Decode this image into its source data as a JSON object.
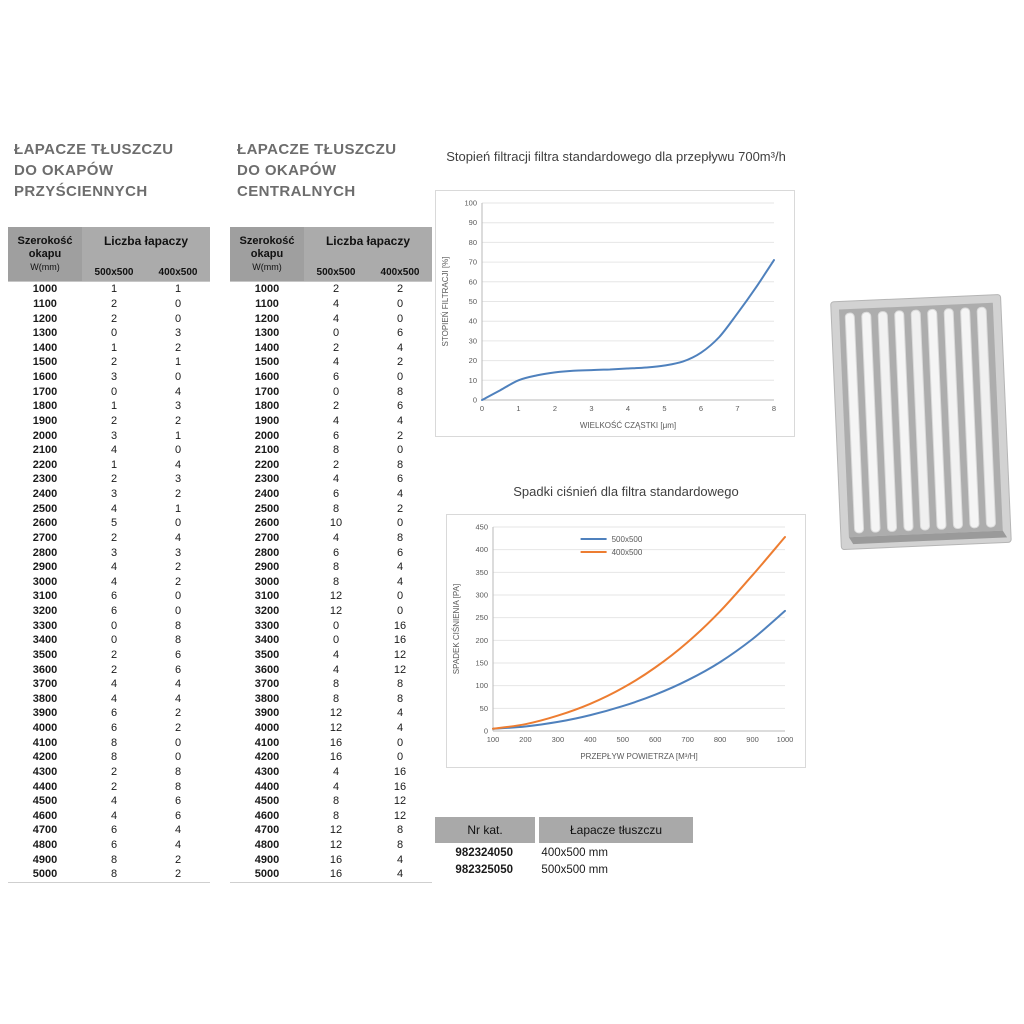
{
  "colors": {
    "accent_blue": "#4f81bd",
    "accent_orange": "#ed7d31",
    "header_gray": "#a9a9a9"
  },
  "left_tables": [
    {
      "title_lines": [
        "ŁAPACZE TŁUSZCZU",
        "DO OKAPÓW",
        "PRZYŚCIENNYCH"
      ],
      "header": {
        "col1": [
          "Szerokość",
          "okapu",
          "W(mm)"
        ],
        "group": "Liczba łapaczy",
        "subcols": [
          "500x500",
          "400x500"
        ]
      },
      "rows": [
        [
          1000,
          1,
          1
        ],
        [
          1100,
          2,
          0
        ],
        [
          1200,
          2,
          0
        ],
        [
          1300,
          0,
          3
        ],
        [
          1400,
          1,
          2
        ],
        [
          1500,
          2,
          1
        ],
        [
          1600,
          3,
          0
        ],
        [
          1700,
          0,
          4
        ],
        [
          1800,
          1,
          3
        ],
        [
          1900,
          2,
          2
        ],
        [
          2000,
          3,
          1
        ],
        [
          2100,
          4,
          0
        ],
        [
          2200,
          1,
          4
        ],
        [
          2300,
          2,
          3
        ],
        [
          2400,
          3,
          2
        ],
        [
          2500,
          4,
          1
        ],
        [
          2600,
          5,
          0
        ],
        [
          2700,
          2,
          4
        ],
        [
          2800,
          3,
          3
        ],
        [
          2900,
          4,
          2
        ],
        [
          3000,
          4,
          2
        ],
        [
          3100,
          6,
          0
        ],
        [
          3200,
          6,
          0
        ],
        [
          3300,
          0,
          8
        ],
        [
          3400,
          0,
          8
        ],
        [
          3500,
          2,
          6
        ],
        [
          3600,
          2,
          6
        ],
        [
          3700,
          4,
          4
        ],
        [
          3800,
          4,
          4
        ],
        [
          3900,
          6,
          2
        ],
        [
          4000,
          6,
          2
        ],
        [
          4100,
          8,
          0
        ],
        [
          4200,
          8,
          0
        ],
        [
          4300,
          2,
          8
        ],
        [
          4400,
          2,
          8
        ],
        [
          4500,
          4,
          6
        ],
        [
          4600,
          4,
          6
        ],
        [
          4700,
          6,
          4
        ],
        [
          4800,
          6,
          4
        ],
        [
          4900,
          8,
          2
        ],
        [
          5000,
          8,
          2
        ]
      ]
    },
    {
      "title_lines": [
        "ŁAPACZE TŁUSZCZU",
        "DO OKAPÓW",
        "CENTRALNYCH"
      ],
      "header": {
        "col1": [
          "Szerokość",
          "okapu",
          "W(mm)"
        ],
        "group": "Liczba łapaczy",
        "subcols": [
          "500x500",
          "400x500"
        ]
      },
      "rows": [
        [
          1000,
          2,
          2
        ],
        [
          1100,
          4,
          0
        ],
        [
          1200,
          4,
          0
        ],
        [
          1300,
          0,
          6
        ],
        [
          1400,
          2,
          4
        ],
        [
          1500,
          4,
          2
        ],
        [
          1600,
          6,
          0
        ],
        [
          1700,
          0,
          8
        ],
        [
          1800,
          2,
          6
        ],
        [
          1900,
          4,
          4
        ],
        [
          2000,
          6,
          2
        ],
        [
          2100,
          8,
          0
        ],
        [
          2200,
          2,
          8
        ],
        [
          2300,
          4,
          6
        ],
        [
          2400,
          6,
          4
        ],
        [
          2500,
          8,
          2
        ],
        [
          2600,
          10,
          0
        ],
        [
          2700,
          4,
          8
        ],
        [
          2800,
          6,
          6
        ],
        [
          2900,
          8,
          4
        ],
        [
          3000,
          8,
          4
        ],
        [
          3100,
          12,
          0
        ],
        [
          3200,
          12,
          0
        ],
        [
          3300,
          0,
          16
        ],
        [
          3400,
          0,
          16
        ],
        [
          3500,
          4,
          12
        ],
        [
          3600,
          4,
          12
        ],
        [
          3700,
          8,
          8
        ],
        [
          3800,
          8,
          8
        ],
        [
          3900,
          12,
          4
        ],
        [
          4000,
          12,
          4
        ],
        [
          4100,
          16,
          0
        ],
        [
          4200,
          16,
          0
        ],
        [
          4300,
          4,
          16
        ],
        [
          4400,
          4,
          16
        ],
        [
          4500,
          8,
          12
        ],
        [
          4600,
          8,
          12
        ],
        [
          4700,
          12,
          8
        ],
        [
          4800,
          12,
          8
        ],
        [
          4900,
          16,
          4
        ],
        [
          5000,
          16,
          4
        ]
      ]
    }
  ],
  "chart_data": [
    {
      "type": "line",
      "title": "Stopień filtracji filtra standardowego dla przepływu 700m³/h",
      "xlabel": "WIELKOŚĆ CZĄSTKI [μm]",
      "ylabel": "STOPIEŃ FILTRACJI [%]",
      "xlim": [
        0,
        8
      ],
      "ylim": [
        0,
        100
      ],
      "xticks": [
        0,
        1,
        2,
        3,
        4,
        5,
        6,
        7,
        8
      ],
      "yticks": [
        0,
        10,
        20,
        30,
        40,
        50,
        60,
        70,
        80,
        90,
        100
      ],
      "grid": true,
      "legend": false,
      "series": [
        {
          "name": "stopień filtracji",
          "color": "#4f81bd",
          "x": [
            0,
            0.5,
            1,
            1.5,
            2,
            2.5,
            3,
            3.5,
            4,
            4.5,
            5,
            5.5,
            6,
            6.5,
            7,
            7.5,
            8
          ],
          "y": [
            0,
            5,
            10,
            12.5,
            14,
            14.8,
            15.2,
            15.5,
            16,
            16.5,
            17.5,
            19.5,
            24,
            32,
            44,
            57,
            71
          ]
        }
      ]
    },
    {
      "type": "line",
      "title": "Spadki ciśnień dla filtra standardowego",
      "xlabel": "PRZEPŁYW POWIETRZA [M³/H]",
      "ylabel": "SPADEK CIŚNIENIA [PA]",
      "xlim": [
        100,
        1000
      ],
      "ylim": [
        0,
        450
      ],
      "xticks": [
        100,
        200,
        300,
        400,
        500,
        600,
        700,
        800,
        900,
        1000
      ],
      "yticks": [
        0,
        50,
        100,
        150,
        200,
        250,
        300,
        350,
        400,
        450
      ],
      "grid": true,
      "legend": true,
      "legend_position": "top",
      "series": [
        {
          "name": "500x500",
          "color": "#4f81bd",
          "x": [
            100,
            200,
            300,
            400,
            500,
            600,
            700,
            800,
            900,
            1000
          ],
          "y": [
            5,
            10,
            20,
            35,
            55,
            80,
            112,
            152,
            203,
            265
          ]
        },
        {
          "name": "400x500",
          "color": "#ed7d31",
          "x": [
            100,
            200,
            300,
            400,
            500,
            600,
            700,
            800,
            900,
            1000
          ],
          "y": [
            5,
            15,
            34,
            60,
            95,
            140,
            196,
            264,
            344,
            428
          ]
        }
      ]
    }
  ],
  "catalog_table": {
    "headers": [
      "Nr kat.",
      "Łapacze tłuszczu"
    ],
    "rows": [
      {
        "nr": "982324050",
        "size": "400x500 mm"
      },
      {
        "nr": "982325050",
        "size": "500x500 mm"
      }
    ]
  },
  "images": {
    "filter_photo": "baffle-grease-filter-photo"
  }
}
